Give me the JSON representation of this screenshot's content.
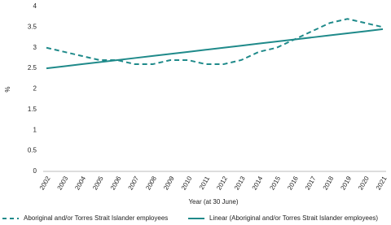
{
  "chart_data": {
    "type": "line",
    "x_label": "Year (at 30 June)",
    "y_label": "%",
    "categories": [
      "2002",
      "2003",
      "2004",
      "2005",
      "2006",
      "2007",
      "2008",
      "2009",
      "2010",
      "2011",
      "2012",
      "2013",
      "2014",
      "2015",
      "2016",
      "2017",
      "2018",
      "2019",
      "2020",
      "2021"
    ],
    "series": [
      {
        "name": "Aboriginal and/or Torres Strait Islander employees",
        "color": "#1f8a8a",
        "dash": "dashed",
        "values": [
          3.0,
          2.9,
          2.8,
          2.7,
          2.7,
          2.6,
          2.6,
          2.7,
          2.7,
          2.6,
          2.6,
          2.7,
          2.9,
          3.0,
          3.2,
          3.4,
          3.6,
          3.7,
          3.6,
          3.5
        ]
      },
      {
        "name": "Linear (Aboriginal and/or Torres Strait Islander employees)",
        "color": "#1f8a8a",
        "dash": "solid",
        "values": [
          2.5,
          2.55,
          2.6,
          2.65,
          2.7,
          2.75,
          2.8,
          2.85,
          2.9,
          2.95,
          3.0,
          3.05,
          3.1,
          3.15,
          3.2,
          3.25,
          3.3,
          3.35,
          3.4,
          3.45
        ]
      }
    ],
    "ylim": [
      0,
      4
    ],
    "yticks": [
      0,
      0.5,
      1,
      1.5,
      2,
      2.5,
      3,
      3.5,
      4
    ],
    "grid": false
  }
}
